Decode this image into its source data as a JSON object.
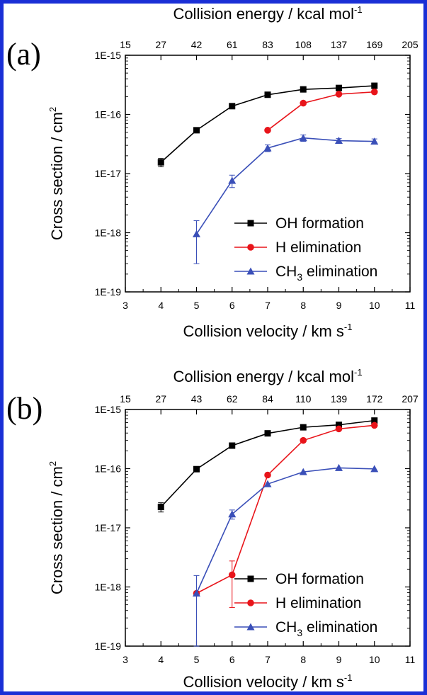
{
  "chart_data": [
    {
      "type": "line",
      "panel_label": "(a)",
      "xlabel_bottom": "Collision velocity / km s",
      "xlabel_bottom_sup": "-1",
      "xlabel_top": "Collision energy / kcal mol",
      "xlabel_top_sup": "-1",
      "ylabel": "Cross section / cm",
      "ylabel_sup": "2",
      "xlim": [
        3,
        11
      ],
      "x_ticks": [
        3,
        4,
        5,
        6,
        7,
        8,
        9,
        10,
        11
      ],
      "x_tick_labels": [
        "3",
        "4",
        "5",
        "6",
        "7",
        "8",
        "9",
        "10",
        "11"
      ],
      "top_ticks": [
        3,
        4,
        5,
        6,
        7,
        8,
        9,
        10,
        11
      ],
      "top_tick_labels": [
        "15",
        "27",
        "42",
        "61",
        "83",
        "108",
        "137",
        "169",
        "205"
      ],
      "ylim": [
        1e-19,
        1e-15
      ],
      "yscale": "log",
      "y_ticks": [
        1e-19,
        1e-18,
        1e-17,
        1e-16,
        1e-15
      ],
      "y_tick_labels": [
        "1E-19",
        "1E-18",
        "1E-17",
        "1E-16",
        "1E-15"
      ],
      "legend_position": "lower-right",
      "series": [
        {
          "name": "OH formation",
          "name_sub": "",
          "name_tail": "",
          "color": "#000000",
          "marker": "square",
          "x": [
            4,
            5,
            6,
            7,
            8,
            9,
            10
          ],
          "y": [
            1.55e-17,
            5.4e-17,
            1.38e-16,
            2.15e-16,
            2.65e-16,
            2.8e-16,
            3.05e-16
          ],
          "err": [
            2.5e-18,
            0,
            0,
            0,
            0,
            0,
            0
          ]
        },
        {
          "name": "H elimination",
          "name_sub": "",
          "name_tail": "",
          "color": "#e8141a",
          "marker": "circle",
          "x": [
            7,
            8,
            9,
            10
          ],
          "y": [
            5.4e-17,
            1.55e-16,
            2.2e-16,
            2.4e-16
          ],
          "err": [
            0,
            0,
            0,
            0
          ]
        },
        {
          "name": "CH",
          "name_sub": "3",
          "name_tail": " elimination",
          "color": "#3a4fb8",
          "marker": "triangle",
          "x": [
            5,
            6,
            7,
            8,
            9,
            10
          ],
          "y": [
            9.5e-19,
            7.6e-18,
            2.7e-17,
            4e-17,
            3.6e-17,
            3.5e-17
          ],
          "err": [
            6.5e-19,
            1.8e-18,
            3.5e-18,
            5e-18,
            3e-18,
            3.5e-18
          ]
        }
      ]
    },
    {
      "type": "line",
      "panel_label": "(b)",
      "xlabel_bottom": "Collision velocity / km s",
      "xlabel_bottom_sup": "-1",
      "xlabel_top": "Collision energy / kcal mol",
      "xlabel_top_sup": "-1",
      "ylabel": "Cross section / cm",
      "ylabel_sup": "2",
      "xlim": [
        3,
        11
      ],
      "x_ticks": [
        3,
        4,
        5,
        6,
        7,
        8,
        9,
        10,
        11
      ],
      "x_tick_labels": [
        "3",
        "4",
        "5",
        "6",
        "7",
        "8",
        "9",
        "10",
        "11"
      ],
      "top_ticks": [
        3,
        4,
        5,
        6,
        7,
        8,
        9,
        10,
        11
      ],
      "top_tick_labels": [
        "15",
        "27",
        "43",
        "62",
        "84",
        "110",
        "139",
        "172",
        "207"
      ],
      "ylim": [
        1e-19,
        1e-15
      ],
      "yscale": "log",
      "y_ticks": [
        1e-19,
        1e-18,
        1e-17,
        1e-16,
        1e-15
      ],
      "y_tick_labels": [
        "1E-19",
        "1E-18",
        "1E-17",
        "1E-16",
        "1E-15"
      ],
      "legend_position": "lower-right",
      "series": [
        {
          "name": "OH formation",
          "name_sub": "",
          "name_tail": "",
          "color": "#000000",
          "marker": "square",
          "x": [
            4,
            5,
            6,
            7,
            8,
            9,
            10
          ],
          "y": [
            2.25e-17,
            9.8e-17,
            2.45e-16,
            3.95e-16,
            5e-16,
            5.5e-16,
            6.5e-16
          ],
          "err": [
            4e-18,
            0,
            0,
            0,
            0,
            0,
            0
          ]
        },
        {
          "name": "H elimination",
          "name_sub": "",
          "name_tail": "",
          "color": "#e8141a",
          "marker": "circle",
          "x": [
            5,
            6,
            7,
            8,
            9,
            10
          ],
          "y": [
            7.8e-19,
            1.6e-18,
            7.8e-17,
            3e-16,
            4.7e-16,
            5.4e-16
          ],
          "err": [
            0,
            1.15e-18,
            0,
            0,
            0,
            0
          ]
        },
        {
          "name": "CH",
          "name_sub": "3",
          "name_tail": " elimination",
          "color": "#3a4fb8",
          "marker": "triangle",
          "x": [
            5,
            6,
            7,
            8,
            9,
            10
          ],
          "y": [
            7.8e-19,
            1.7e-17,
            5.5e-17,
            8.8e-17,
            1.03e-16,
            9.9e-17
          ],
          "err": [
            7.8e-19,
            3e-18,
            0,
            0,
            0,
            0
          ]
        }
      ]
    }
  ]
}
